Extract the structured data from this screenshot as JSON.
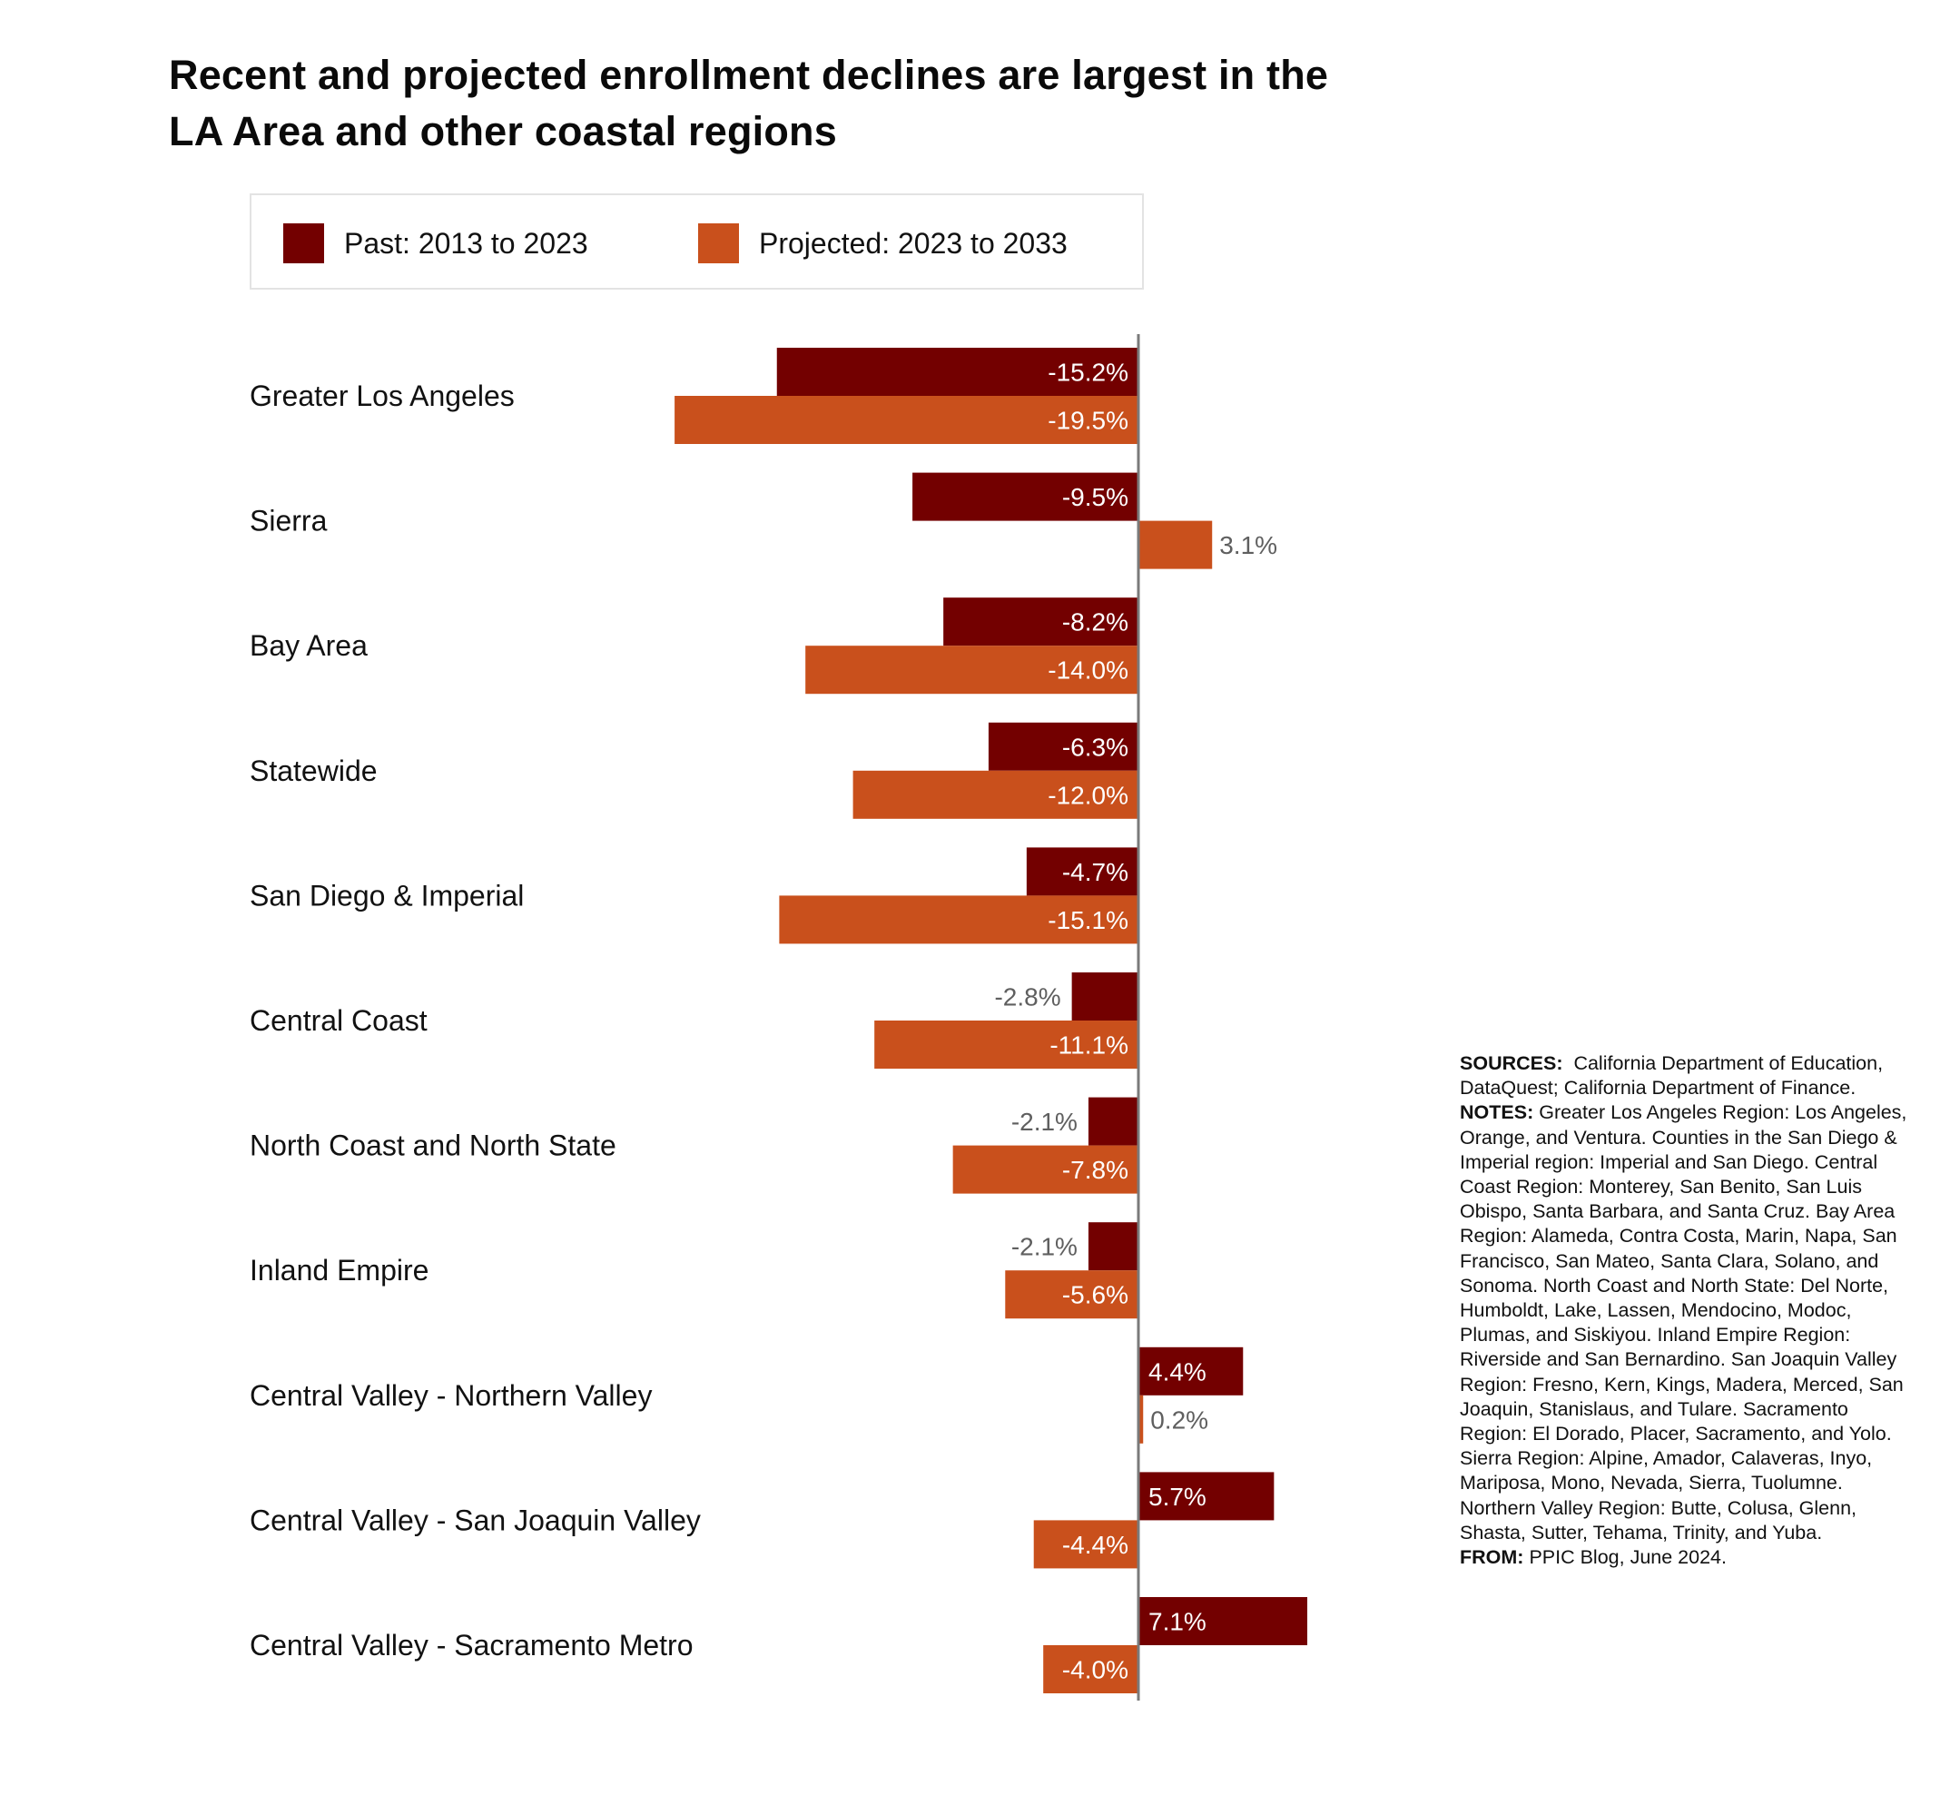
{
  "title": "Recent and projected enrollment declines are largest in the LA Area and other coastal regions",
  "legend": {
    "items": [
      {
        "label": "Past: 2013 to 2023",
        "color": "#730000"
      },
      {
        "label": "Projected: 2023 to 2033",
        "color": "#C9501C"
      }
    ]
  },
  "notes": {
    "sources_label": "SOURCES:",
    "sources_text": "California Department of Education, DataQuest; California Department of Finance.",
    "notes_label": "NOTES:",
    "notes_text": "Greater Los Angeles Region: Los Angeles, Orange, and Ventura. Counties in the San Diego & Imperial region: Imperial and San Diego. Central Coast Region: Monterey, San Benito, San Luis Obispo, Santa Barbara, and Santa Cruz. Bay Area Region: Alameda, Contra Costa, Marin, Napa, San Francisco, San Mateo, Santa Clara, Solano, and Sonoma. North Coast and North State: Del Norte, Humboldt, Lake, Lassen, Mendocino, Modoc, Plumas, and Siskiyou. Inland Empire Region: Riverside and San Bernardino. San Joaquin Valley Region: Fresno, Kern, Kings, Madera, Merced, San Joaquin, Stanislaus, and Tulare. Sacramento Region: El Dorado, Placer, Sacramento, and Yolo. Sierra Region: Alpine, Amador, Calaveras, Inyo, Mariposa, Mono, Nevada, Sierra, Tuolumne. Northern Valley Region: Butte, Colusa, Glenn, Shasta, Sutter, Tehama, Trinity, and Yuba.",
    "from_label": "FROM:",
    "from_text": "PPIC Blog, June 2024."
  },
  "chart_data": {
    "type": "bar",
    "orientation": "horizontal",
    "title": "Recent and projected enrollment declines are largest in the LA Area and other coastal regions",
    "xlabel": "",
    "ylabel": "",
    "unit": "%",
    "grid": false,
    "legend_position": "top",
    "categories": [
      "Greater Los Angeles",
      "Sierra",
      "Bay Area",
      "Statewide",
      "San Diego & Imperial",
      "Central Coast",
      "North Coast and North State",
      "Inland Empire",
      "Central Valley - Northern Valley",
      "Central Valley - San Joaquin Valley",
      "Central Valley - Sacramento Metro"
    ],
    "series": [
      {
        "name": "Past: 2013 to 2023",
        "color": "#730000",
        "values": [
          -15.2,
          -9.5,
          -8.2,
          -6.3,
          -4.7,
          -2.8,
          -2.1,
          -2.1,
          4.4,
          5.7,
          7.1
        ],
        "labels": [
          "-15.2%",
          "-9.5%",
          "-8.2%",
          "-6.3%",
          "-4.7%",
          "-2.8%",
          "-2.1%",
          "-2.1%",
          "4.4%",
          "5.7%",
          "7.1%"
        ]
      },
      {
        "name": "Projected: 2023 to 2033",
        "color": "#C9501C",
        "values": [
          -19.5,
          3.1,
          -14.0,
          -12.0,
          -15.1,
          -11.1,
          -7.8,
          -5.6,
          0.2,
          -4.4,
          -4.0
        ],
        "labels": [
          "-19.5%",
          "3.1%",
          "-14.0%",
          "-12.0%",
          "-15.1%",
          "-11.1%",
          "-7.8%",
          "-5.6%",
          "0.2%",
          "-4.4%",
          "-4.0%"
        ]
      }
    ],
    "xlim": [
      -20,
      8
    ],
    "label_colors": {
      "inside": "#ffffff",
      "outside": "#5f5f5f"
    },
    "axis_color": "#7a7a7a"
  }
}
